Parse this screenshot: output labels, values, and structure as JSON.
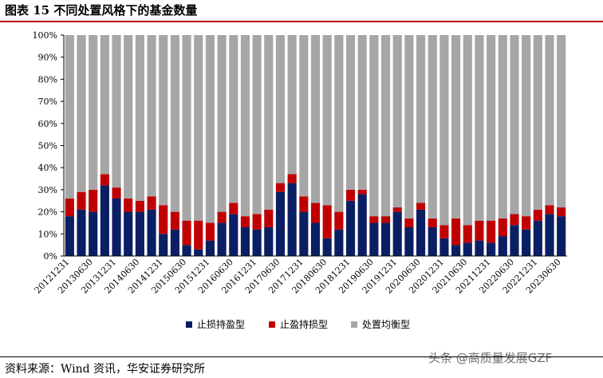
{
  "header": {
    "title": "图表 15  不同处置风格下的基金数量"
  },
  "footer": {
    "source": "资料来源：Wind 资讯，华安证券研究所",
    "watermark": "头条 @高质量发展GZF"
  },
  "chart_data": {
    "type": "bar",
    "stacked": true,
    "percent_stacked": true,
    "title": "",
    "xlabel": "",
    "ylabel": "",
    "ylim": [
      0,
      100
    ],
    "y_ticks": [
      "0%",
      "10%",
      "20%",
      "30%",
      "40%",
      "50%",
      "60%",
      "70%",
      "80%",
      "90%",
      "100%"
    ],
    "grid": false,
    "legend_position": "bottom",
    "colors": {
      "series_0": "#0a1f63",
      "series_1": "#c00000",
      "series_2": "#a6a6a6"
    },
    "categories": [
      "20121231",
      "20130630",
      "20131231",
      "20140630",
      "20141231",
      "20150630",
      "20151231",
      "20160630",
      "20161231",
      "20170630",
      "20171231",
      "20180630",
      "20181231",
      "20190630",
      "20191231",
      "20200630",
      "20201231",
      "20210630",
      "20211231",
      "20220630",
      "20221231",
      "20230630"
    ],
    "category_labels": [
      "20121231",
      "20130630",
      "20131231",
      "20140630",
      "20141231",
      "20150630",
      "20151231",
      "20160630",
      "20161231",
      "20170630",
      "20171231",
      "20180630",
      "20181231",
      "20190630",
      "20191231",
      "20200630",
      "20201231",
      "20210630",
      "20211231",
      "20220630",
      "20221231",
      "20230630"
    ],
    "x": [
      "20121231",
      "20130331",
      "20130630",
      "20130930",
      "20131231",
      "20140331",
      "20140630",
      "20140930",
      "20141231",
      "20150331",
      "20150630",
      "20150930",
      "20151231",
      "20160331",
      "20160630",
      "20160930",
      "20161231",
      "20170331",
      "20170630",
      "20170930",
      "20171231",
      "20180331",
      "20180630",
      "20180930",
      "20181231",
      "20190331",
      "20190630",
      "20190930",
      "20191231",
      "20200331",
      "20200630",
      "20200930",
      "20201231",
      "20210331",
      "20210630",
      "20210930",
      "20211231",
      "20220331",
      "20220630",
      "20220930",
      "20221231",
      "20230331",
      "20230630"
    ],
    "series": [
      {
        "name": "止损持盈型",
        "values": [
          18,
          21,
          20,
          32,
          26,
          20,
          20,
          21,
          10,
          12,
          5,
          3,
          7,
          15,
          19,
          13,
          12,
          13,
          29,
          33,
          20,
          15,
          8,
          12,
          25,
          28,
          15,
          15,
          20,
          13,
          21,
          13,
          8,
          5,
          6,
          7,
          6,
          9,
          14,
          12,
          16,
          19,
          18
        ]
      },
      {
        "name": "止盈持损型",
        "values": [
          8,
          8,
          10,
          5,
          5,
          6,
          5,
          6,
          13,
          8,
          11,
          13,
          8,
          5,
          5,
          5,
          7,
          8,
          4,
          4,
          7,
          9,
          15,
          8,
          5,
          2,
          3,
          3,
          2,
          4,
          3,
          4,
          6,
          12,
          8,
          9,
          10,
          8,
          5,
          6,
          5,
          4,
          4
        ]
      },
      {
        "name": "处置均衡型",
        "values": [
          74,
          71,
          70,
          63,
          69,
          74,
          75,
          73,
          77,
          80,
          84,
          84,
          85,
          80,
          76,
          82,
          81,
          79,
          67,
          63,
          73,
          76,
          77,
          80,
          70,
          70,
          82,
          82,
          78,
          83,
          76,
          83,
          86,
          83,
          86,
          84,
          84,
          83,
          81,
          82,
          79,
          77,
          78
        ]
      }
    ]
  }
}
